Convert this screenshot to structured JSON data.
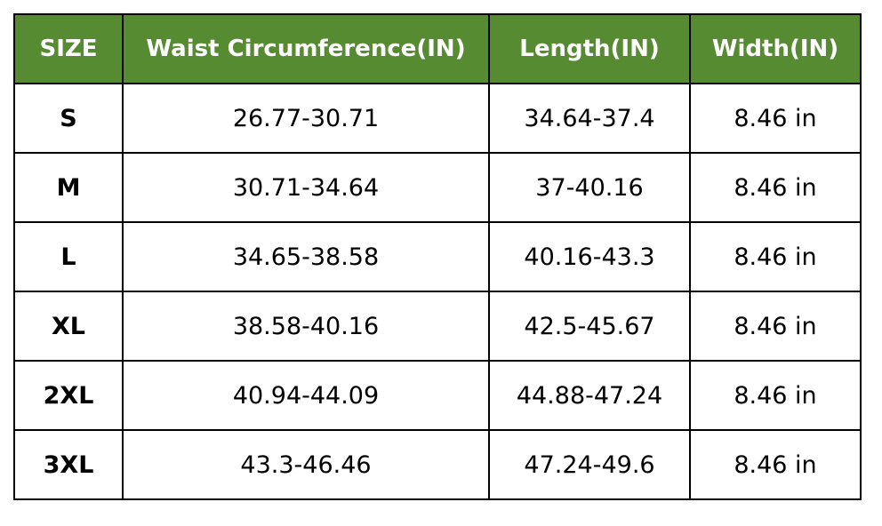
{
  "header_color": "#568b32",
  "headers": [
    "SIZE",
    "Waist Circumference(IN)",
    "Length(IN)",
    "Width(IN)"
  ],
  "rows": [
    [
      "S",
      "26.77-30.71",
      "34.64-37.4",
      "8.46 in"
    ],
    [
      "M",
      "30.71-34.64",
      "37-40.16",
      "8.46 in"
    ],
    [
      "L",
      "34.65-38.58",
      "40.16-43.3",
      "8.46 in"
    ],
    [
      "XL",
      "38.58-40.16",
      "42.5-45.67",
      "8.46 in"
    ],
    [
      "2XL",
      "40.94-44.09",
      "44.88-47.24",
      "8.46 in"
    ],
    [
      "3XL",
      "43.3-46.46",
      "47.24-49.6",
      "8.46 in"
    ]
  ]
}
